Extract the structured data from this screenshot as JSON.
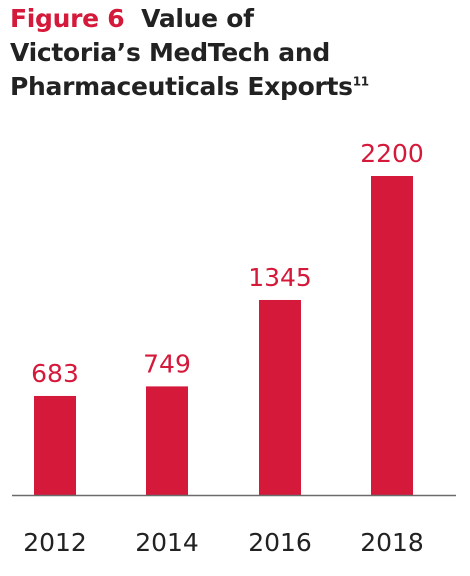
{
  "title": {
    "figure_label": "Figure 6",
    "line1": "Value of",
    "line2": "Victoria’s MedTech and",
    "line3": "Pharmaceuticals Exports",
    "superscript": "11"
  },
  "colors": {
    "bar": "#d4193a",
    "accent": "#d4193a",
    "text": "#222222",
    "axis": "#6b6b6b"
  },
  "chart_data": {
    "type": "bar",
    "categories": [
      "2012",
      "2014",
      "2016",
      "2018"
    ],
    "values": [
      683,
      749,
      1345,
      2200
    ],
    "data_labels": [
      "683",
      "749",
      "1345",
      "2200"
    ],
    "title": "Figure 6 Value of Victoria’s MedTech and Pharmaceuticals Exports",
    "xlabel": "",
    "ylabel": "",
    "ylim": [
      0,
      2200
    ],
    "grid": false,
    "legend": "none"
  }
}
